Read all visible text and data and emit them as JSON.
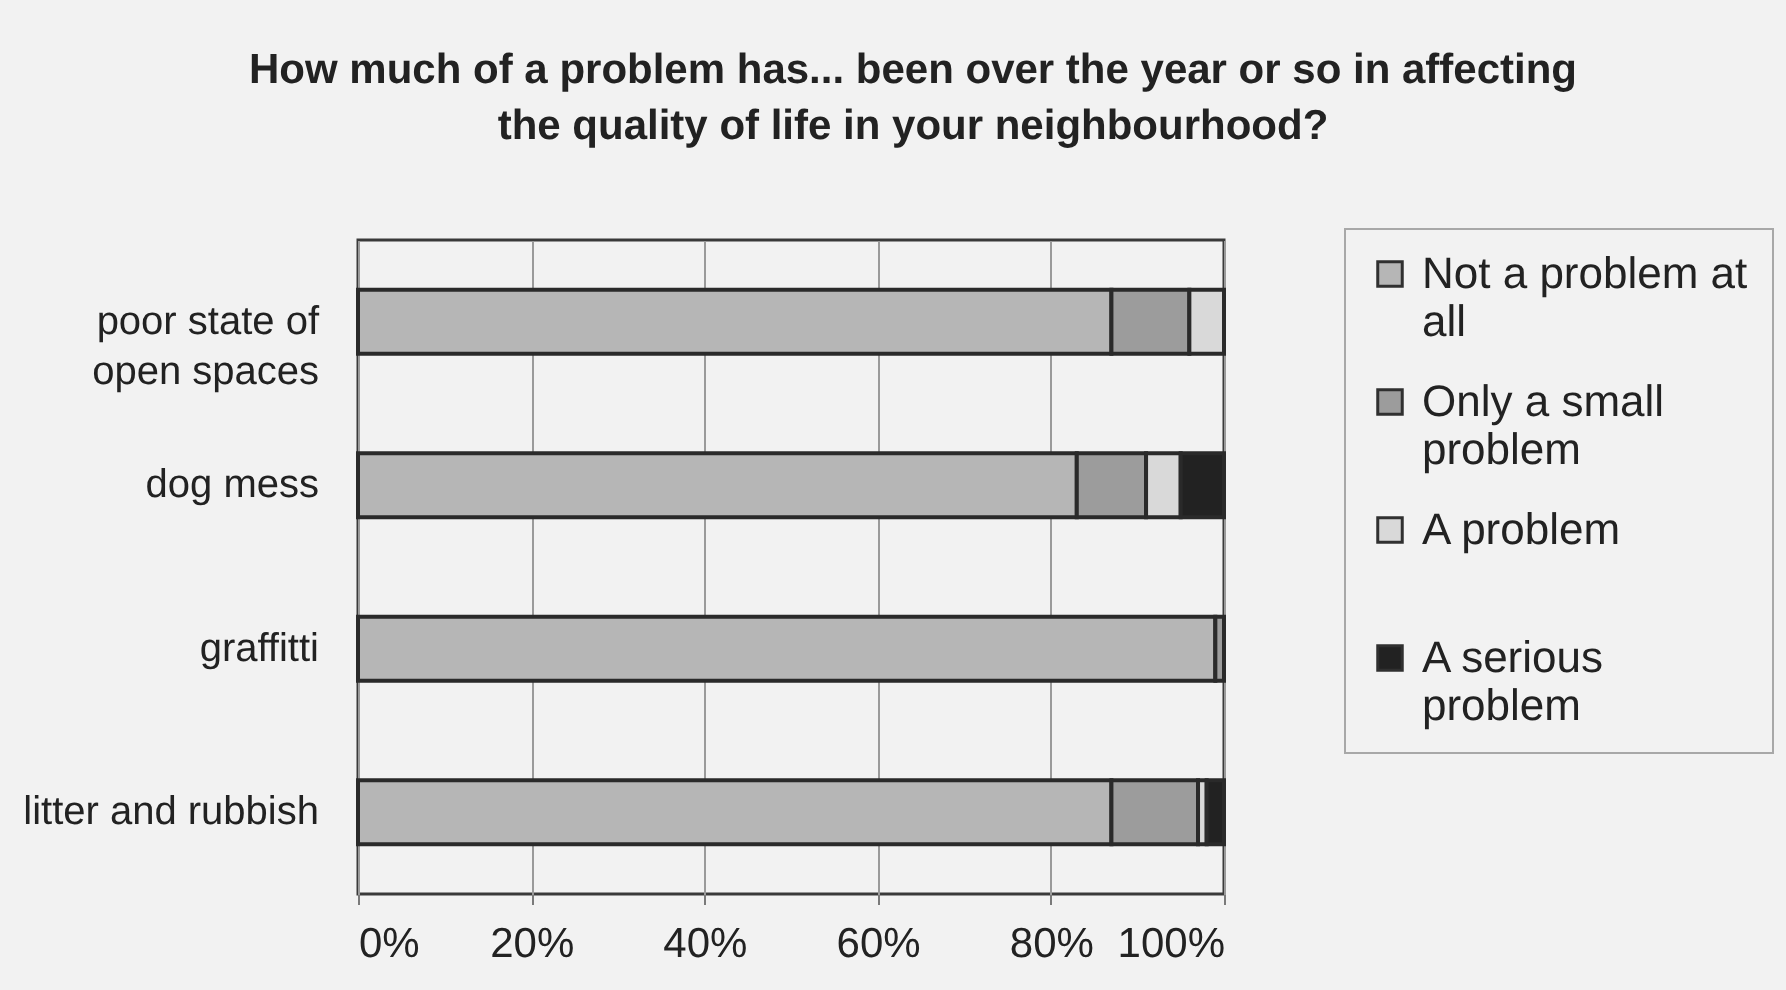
{
  "chart_data": {
    "type": "bar",
    "orientation": "horizontal",
    "stacked": true,
    "title": "How much of a problem has... been over the year or so in affecting the quality of life in your neighbourhood?",
    "categories": [
      "poor state of open spaces",
      "dog mess",
      "graffitti",
      "litter and rubbish"
    ],
    "series": [
      {
        "name": "Not a problem at all",
        "color": "#b6b6b6",
        "values": [
          87,
          83,
          99,
          87
        ]
      },
      {
        "name": "Only  a small problem",
        "color": "#9c9c9c",
        "values": [
          9,
          8,
          1,
          10
        ]
      },
      {
        "name": "A problem",
        "color": "#d9d9d9",
        "values": [
          4,
          4,
          0,
          1
        ]
      },
      {
        "name": "A serious problem",
        "color": "#222222",
        "values": [
          0,
          5,
          0,
          2
        ]
      }
    ],
    "xlim": [
      0,
      100
    ],
    "xticks": [
      {
        "value": 0,
        "label": "0%"
      },
      {
        "value": 20,
        "label": "20%"
      },
      {
        "value": 40,
        "label": "40%"
      },
      {
        "value": 60,
        "label": "60%"
      },
      {
        "value": 80,
        "label": "80%"
      },
      {
        "value": 100,
        "label": "100%"
      }
    ],
    "grid": "x",
    "legend": "right"
  }
}
